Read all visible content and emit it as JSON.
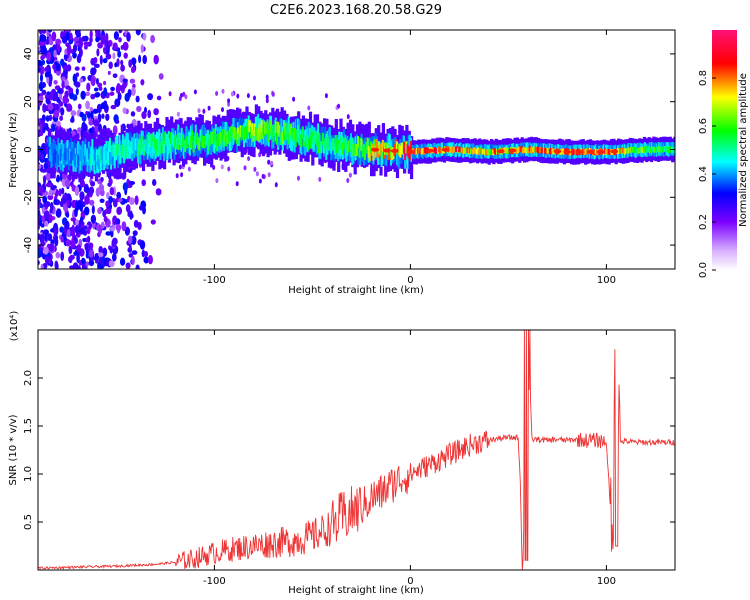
{
  "title": "C2E6.2023.168.20.58.G29",
  "chart_data": [
    {
      "type": "heatmap",
      "xlabel": "Height of straight line (km)",
      "ylabel": "Frequency (Hz)",
      "xlim": [
        -190,
        135
      ],
      "ylim": [
        -50,
        50
      ],
      "xticks": [
        -100,
        0,
        100
      ],
      "yticks": [
        -40,
        -20,
        0,
        20,
        40
      ],
      "colorbar": {
        "label": "Normalized spectral amplitude",
        "range": [
          0,
          1
        ],
        "ticks": [
          0.0,
          0.2,
          0.4,
          0.6,
          0.8
        ],
        "colors": [
          "#ffffff",
          "#7b00ff",
          "#0000ff",
          "#00ffff",
          "#00ff00",
          "#ffff00",
          "#ff0000",
          "#ff00aa"
        ]
      },
      "ridge": {
        "description_points_x": [
          -180,
          -160,
          -140,
          -120,
          -100,
          -80,
          -60,
          -40,
          -20,
          0,
          20,
          40,
          60,
          80,
          100,
          120,
          135
        ],
        "center_freq": [
          -2,
          -3,
          1,
          3,
          4,
          8,
          6,
          2,
          0,
          -1,
          0,
          -1,
          0,
          -1,
          -1,
          0,
          0
        ],
        "peak_amp": [
          0.35,
          0.45,
          0.5,
          0.55,
          0.6,
          0.65,
          0.6,
          0.5,
          0.7,
          0.9,
          0.85,
          0.8,
          0.8,
          0.85,
          0.85,
          0.6,
          0.55
        ]
      }
    },
    {
      "type": "line",
      "xlabel": "Height of straight line (km)",
      "ylabel": "SNR (10 * v/v)",
      "yscale_label": "(x10⁴)",
      "xlim": [
        -190,
        135
      ],
      "ylim": [
        0,
        2.5
      ],
      "xticks": [
        -100,
        0,
        100
      ],
      "yticks": [
        0.5,
        1.0,
        1.5,
        2.0
      ],
      "ytick_labels": [
        "0.5",
        "1.0",
        "1.5",
        "2.0"
      ],
      "series": [
        {
          "name": "SNR",
          "color": "#ee3333",
          "x": [
            -190,
            -170,
            -150,
            -130,
            -120,
            -110,
            -100,
            -90,
            -80,
            -70,
            -60,
            -50,
            -40,
            -35,
            -30,
            -25,
            -20,
            -15,
            -10,
            -5,
            0,
            5,
            10,
            15,
            20,
            25,
            30,
            35,
            40,
            45,
            50,
            55,
            58,
            60,
            62,
            65,
            70,
            75,
            80,
            85,
            90,
            95,
            100,
            103,
            105,
            107,
            110,
            115,
            120,
            125,
            130,
            135
          ],
          "y": [
            0.02,
            0.03,
            0.04,
            0.06,
            0.08,
            0.12,
            0.18,
            0.22,
            0.25,
            0.28,
            0.3,
            0.35,
            0.45,
            0.55,
            0.6,
            0.65,
            0.75,
            0.8,
            0.88,
            0.95,
            1.0,
            1.05,
            1.1,
            1.15,
            1.2,
            1.25,
            1.3,
            1.33,
            1.35,
            1.37,
            1.38,
            1.38,
            0.1,
            2.5,
            1.36,
            1.36,
            1.35,
            1.36,
            1.35,
            1.36,
            1.35,
            1.35,
            1.34,
            0.3,
            2.2,
            1.34,
            1.34,
            1.33,
            1.33,
            1.33,
            1.33,
            1.33
          ]
        }
      ]
    }
  ]
}
